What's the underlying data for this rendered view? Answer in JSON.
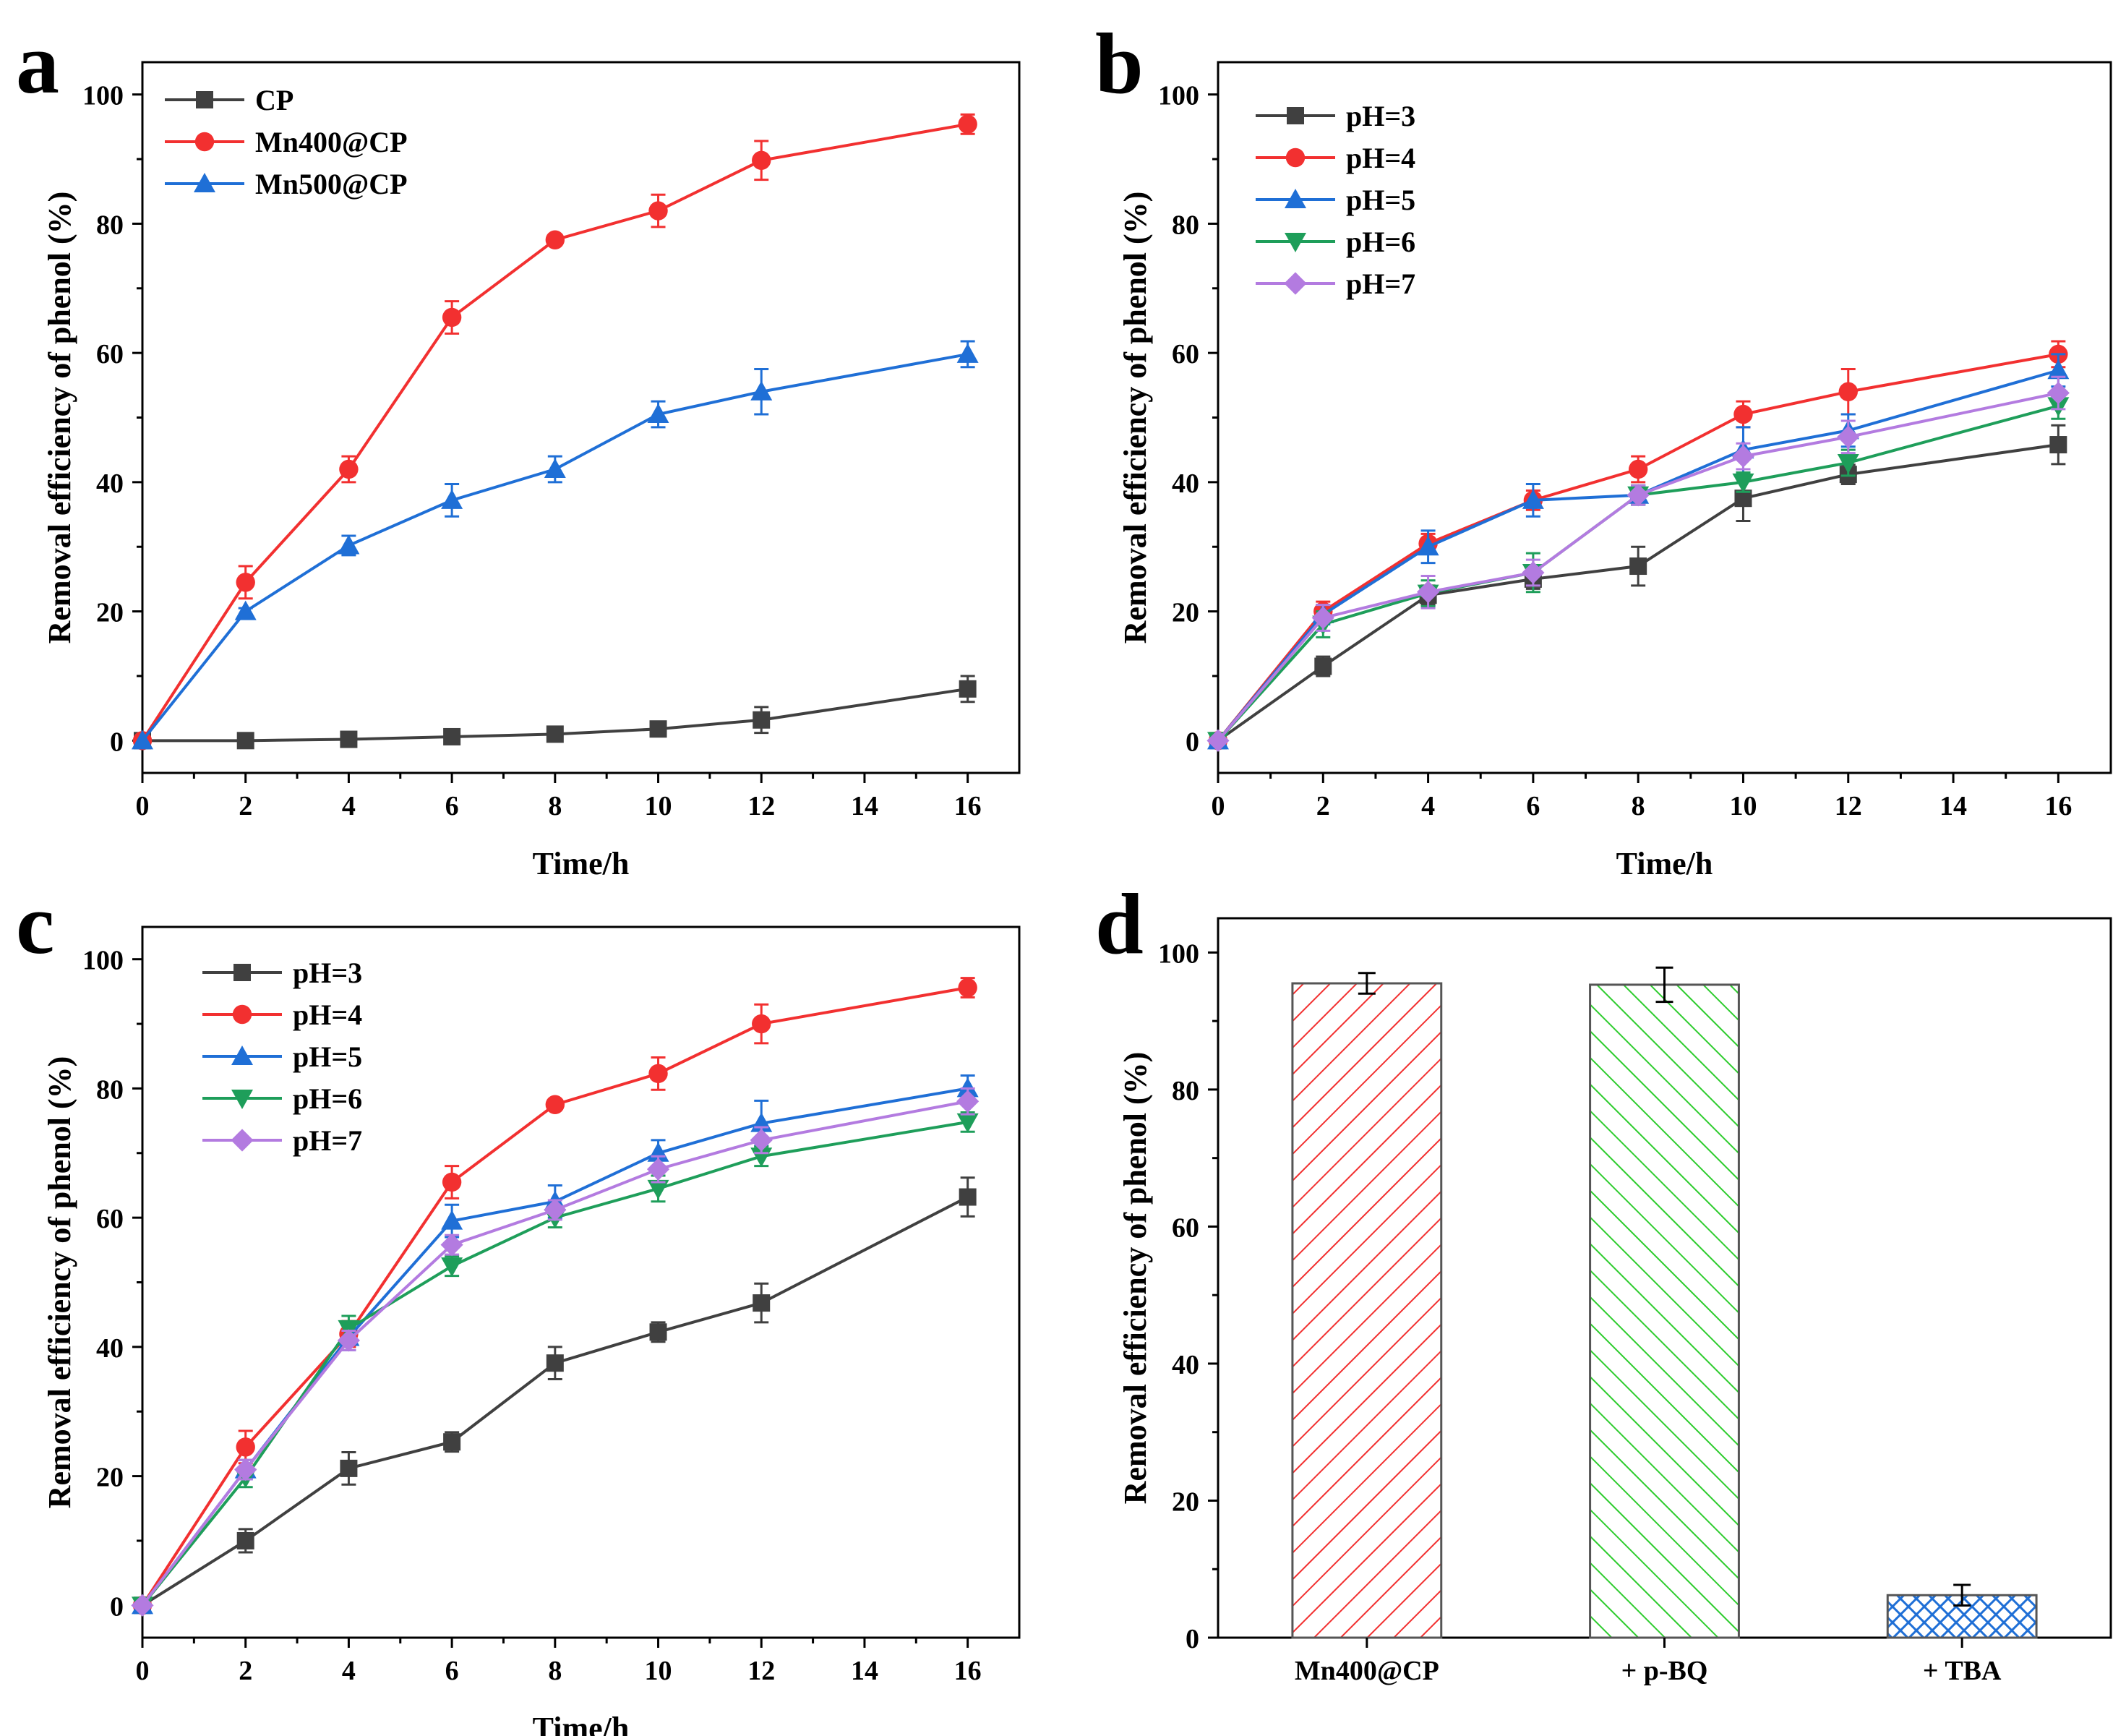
{
  "chart_data": [
    {
      "panel": "a",
      "type": "line",
      "xlabel": "Time/h",
      "ylabel": "Removal efficiency of phenol (%)",
      "xlim": [
        0,
        17
      ],
      "ylim": [
        -5,
        105
      ],
      "xticks": [
        0,
        2,
        4,
        6,
        8,
        10,
        12,
        14,
        16
      ],
      "yticks": [
        0,
        20,
        40,
        60,
        80,
        100
      ],
      "legend_position": "top-left",
      "x": [
        0,
        2,
        4,
        6,
        8,
        10,
        12,
        16
      ],
      "series": [
        {
          "name": "CP",
          "color": "#404040",
          "marker": "square",
          "values": [
            0,
            0,
            0.2,
            0.6,
            1.0,
            1.8,
            3.2,
            8.0
          ],
          "errors": [
            0,
            0.5,
            0.5,
            0.5,
            0.5,
            1.0,
            2.0,
            2.0
          ]
        },
        {
          "name": "Mn400@CP",
          "color": "#f23030",
          "marker": "circle",
          "values": [
            0,
            24.5,
            42,
            65.5,
            77.5,
            82,
            89.8,
            95.4
          ],
          "errors": [
            0,
            2.5,
            2.0,
            2.5,
            0.5,
            2.5,
            3.0,
            1.5
          ]
        },
        {
          "name": "Mn500@CP",
          "color": "#1f6fd6",
          "marker": "triangle-up",
          "values": [
            0,
            20,
            30.2,
            37.2,
            42,
            50.5,
            54,
            59.8
          ],
          "errors": [
            0,
            0.5,
            1.5,
            2.5,
            2.0,
            2.0,
            3.5,
            2.0
          ]
        }
      ]
    },
    {
      "panel": "b",
      "type": "line",
      "xlabel": "Time/h",
      "ylabel": "Removal efficiency of phenol (%)",
      "xlim": [
        0,
        17
      ],
      "ylim": [
        -5,
        105
      ],
      "xticks": [
        0,
        2,
        4,
        6,
        8,
        10,
        12,
        14,
        16
      ],
      "yticks": [
        0,
        20,
        40,
        60,
        80,
        100
      ],
      "legend_position": "top-left",
      "x": [
        0,
        2,
        4,
        6,
        8,
        10,
        12,
        16
      ],
      "series": [
        {
          "name": "pH=3",
          "color": "#404040",
          "marker": "square",
          "values": [
            0,
            11.5,
            22.5,
            25,
            27,
            37.5,
            41.2,
            45.8
          ],
          "errors": [
            0,
            1.5,
            1.5,
            1.5,
            3.0,
            3.5,
            1.5,
            3.0
          ]
        },
        {
          "name": "pH=4",
          "color": "#f23030",
          "marker": "circle",
          "values": [
            0,
            20,
            30.5,
            37.2,
            42,
            50.5,
            54,
            59.8
          ],
          "errors": [
            0,
            1.5,
            1.5,
            1.5,
            2.0,
            2.0,
            3.5,
            2.0
          ]
        },
        {
          "name": "pH=5",
          "color": "#1f6fd6",
          "marker": "triangle-up",
          "values": [
            0,
            19.5,
            30,
            37.2,
            38,
            45,
            48,
            57.3
          ],
          "errors": [
            0,
            1.5,
            2.5,
            2.5,
            1.5,
            3.5,
            2.5,
            2.5
          ]
        },
        {
          "name": "pH=6",
          "color": "#1e9e5a",
          "marker": "triangle-down",
          "values": [
            0,
            18,
            22.8,
            26,
            38,
            40,
            43,
            51.8
          ],
          "errors": [
            0,
            2.0,
            2.0,
            3.0,
            1.5,
            1.5,
            2.0,
            2.0
          ]
        },
        {
          "name": "pH=7",
          "color": "#b37be0",
          "marker": "diamond",
          "values": [
            0,
            19,
            23,
            26,
            38,
            44,
            47,
            53.8
          ],
          "errors": [
            0,
            2.0,
            2.5,
            2.0,
            1.5,
            2.0,
            2.5,
            2.5
          ]
        }
      ]
    },
    {
      "panel": "c",
      "type": "line",
      "xlabel": "Time/h",
      "ylabel": "Removal efficiency of phenol (%)",
      "xlim": [
        0,
        17
      ],
      "ylim": [
        -5,
        105
      ],
      "xticks": [
        0,
        2,
        4,
        6,
        8,
        10,
        12,
        14,
        16
      ],
      "yticks": [
        0,
        20,
        40,
        60,
        80,
        100
      ],
      "legend_position": "top-left",
      "x": [
        0,
        2,
        4,
        6,
        8,
        10,
        12,
        16
      ],
      "series": [
        {
          "name": "pH=3",
          "color": "#404040",
          "marker": "square",
          "values": [
            0,
            10,
            21.2,
            25.3,
            37.5,
            42.3,
            46.8,
            63.2
          ],
          "errors": [
            0,
            1.8,
            2.5,
            1.5,
            2.5,
            1.5,
            3.0,
            3.0
          ]
        },
        {
          "name": "pH=4",
          "color": "#f23030",
          "marker": "circle",
          "values": [
            0,
            24.5,
            42,
            65.5,
            77.5,
            82.3,
            90,
            95.6
          ],
          "errors": [
            0,
            2.5,
            2.0,
            2.5,
            0.5,
            2.5,
            3.0,
            1.5
          ]
        },
        {
          "name": "pH=5",
          "color": "#1f6fd6",
          "marker": "triangle-up",
          "values": [
            0,
            21,
            41.5,
            59.5,
            62.5,
            70,
            74.6,
            80
          ],
          "errors": [
            0,
            1.5,
            2.0,
            2.5,
            2.5,
            2.0,
            3.5,
            2.0
          ]
        },
        {
          "name": "pH=6",
          "color": "#1e9e5a",
          "marker": "triangle-down",
          "values": [
            0,
            19.8,
            42.8,
            52.5,
            60,
            64.5,
            69.5,
            74.8
          ],
          "errors": [
            0,
            1.5,
            2.0,
            1.5,
            1.5,
            2.0,
            1.5,
            1.5
          ]
        },
        {
          "name": "pH=7",
          "color": "#b37be0",
          "marker": "diamond",
          "values": [
            0,
            21,
            41,
            55.8,
            61.2,
            67.5,
            72,
            78
          ],
          "errors": [
            0,
            1.5,
            1.5,
            1.5,
            1.5,
            2.0,
            2.0,
            2.0
          ]
        }
      ]
    },
    {
      "panel": "d",
      "type": "bar",
      "xlabel": "",
      "ylabel": "Removal efficiency of phenol (%)",
      "ylim": [
        0,
        105
      ],
      "yticks": [
        0,
        20,
        40,
        60,
        80,
        100
      ],
      "categories": [
        "Mn400@CP",
        "+ p-BQ",
        "+ TBA"
      ],
      "values": [
        95.5,
        95.3,
        6.2
      ],
      "errors": [
        1.5,
        2.5,
        1.5
      ],
      "colors": [
        "#f23030",
        "#2ecc2e",
        "#1f6fd6"
      ],
      "patterns": [
        "diagonal-up",
        "diagonal-down",
        "crosshatch"
      ]
    }
  ],
  "panel_letters": [
    "a",
    "b",
    "c",
    "d"
  ]
}
